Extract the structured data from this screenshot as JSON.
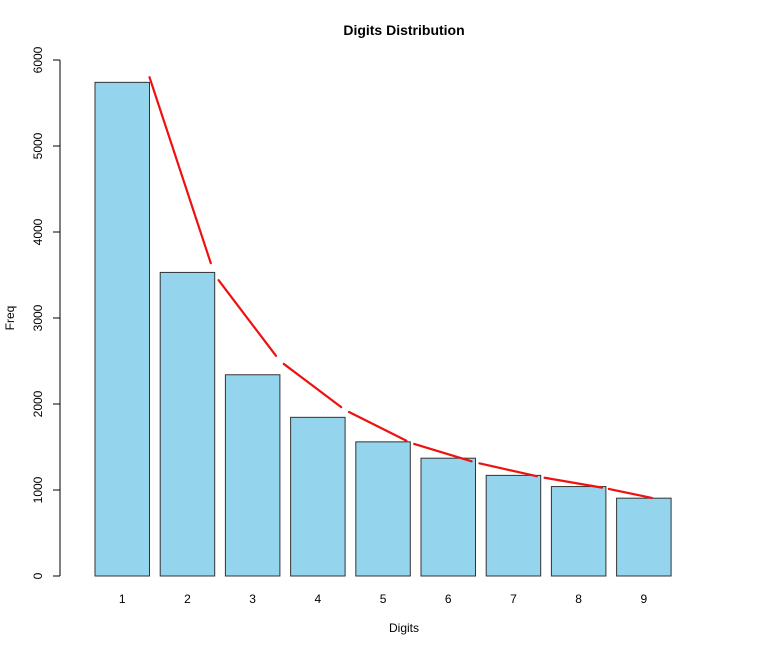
{
  "chart_data": {
    "type": "bar",
    "title": "Digits Distribution",
    "xlabel": "Digits",
    "ylabel": "Freq",
    "categories": [
      "1",
      "2",
      "3",
      "4",
      "5",
      "6",
      "7",
      "8",
      "9"
    ],
    "values": [
      5740,
      3530,
      2340,
      1845,
      1560,
      1370,
      1170,
      1040,
      905
    ],
    "ylim": [
      0,
      6000
    ],
    "yticks": [
      "0",
      "1000",
      "2000",
      "3000",
      "4000",
      "5000",
      "6000"
    ],
    "yticks_values": [
      0,
      1000,
      2000,
      3000,
      4000,
      5000,
      6000
    ],
    "grid": false,
    "legend": "none",
    "overlay_line": {
      "type": "line",
      "style": "segmented",
      "values": [
        5800,
        3500,
        2500,
        1930,
        1550,
        1320,
        1150,
        1020,
        900
      ]
    },
    "colors": {
      "bar_fill": "#94d4ec",
      "bar_stroke": "#333333",
      "line": "#ee1111",
      "axis": "#000000"
    }
  }
}
